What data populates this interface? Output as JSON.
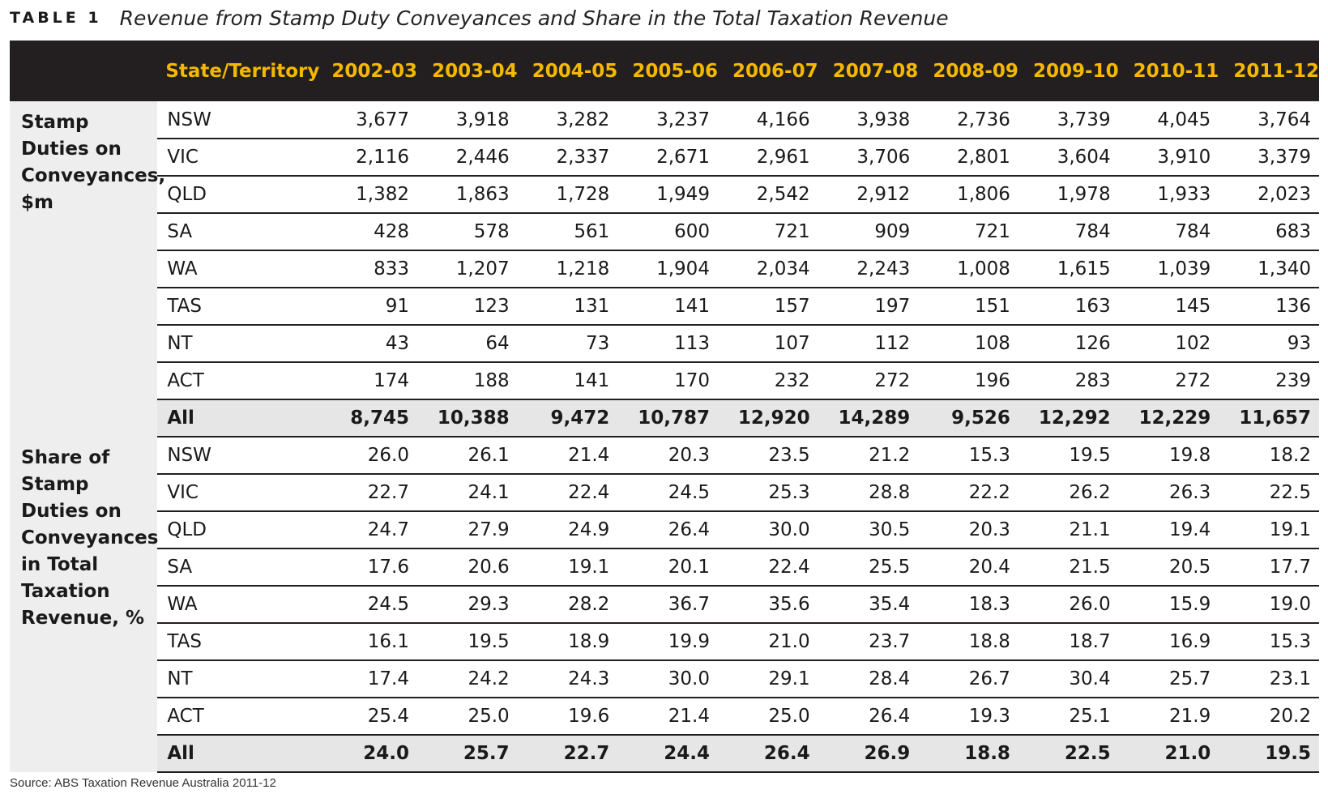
{
  "title": {
    "label": "TABLE 1",
    "text": "Revenue from Stamp Duty Conveyances and Share in the Total Taxation Revenue"
  },
  "table": {
    "state_header": "State/Territory",
    "years": [
      "2002-03",
      "2003-04",
      "2004-05",
      "2005-06",
      "2006-07",
      "2007-08",
      "2008-09",
      "2009-10",
      "2010-11",
      "2011-12"
    ],
    "sections": [
      {
        "label": "Stamp Duties on Conveyances, $m",
        "rows": [
          {
            "state": "NSW",
            "values": [
              "3,677",
              "3,918",
              "3,282",
              "3,237",
              "4,166",
              "3,938",
              "2,736",
              "3,739",
              "4,045",
              "3,764"
            ]
          },
          {
            "state": "VIC",
            "values": [
              "2,116",
              "2,446",
              "2,337",
              "2,671",
              "2,961",
              "3,706",
              "2,801",
              "3,604",
              "3,910",
              "3,379"
            ]
          },
          {
            "state": "QLD",
            "values": [
              "1,382",
              "1,863",
              "1,728",
              "1,949",
              "2,542",
              "2,912",
              "1,806",
              "1,978",
              "1,933",
              "2,023"
            ]
          },
          {
            "state": "SA",
            "values": [
              "428",
              "578",
              "561",
              "600",
              "721",
              "909",
              "721",
              "784",
              "784",
              "683"
            ]
          },
          {
            "state": "WA",
            "values": [
              "833",
              "1,207",
              "1,218",
              "1,904",
              "2,034",
              "2,243",
              "1,008",
              "1,615",
              "1,039",
              "1,340"
            ]
          },
          {
            "state": "TAS",
            "values": [
              "91",
              "123",
              "131",
              "141",
              "157",
              "197",
              "151",
              "163",
              "145",
              "136"
            ]
          },
          {
            "state": "NT",
            "values": [
              "43",
              "64",
              "73",
              "113",
              "107",
              "112",
              "108",
              "126",
              "102",
              "93"
            ]
          },
          {
            "state": "ACT",
            "values": [
              "174",
              "188",
              "141",
              "170",
              "232",
              "272",
              "196",
              "283",
              "272",
              "239"
            ]
          },
          {
            "state": "All",
            "values": [
              "8,745",
              "10,388",
              "9,472",
              "10,787",
              "12,920",
              "14,289",
              "9,526",
              "12,292",
              "12,229",
              "11,657"
            ]
          }
        ]
      },
      {
        "label": "Share of Stamp Duties on Conveyances in Total Taxation Revenue, %",
        "rows": [
          {
            "state": "NSW",
            "values": [
              "26.0",
              "26.1",
              "21.4",
              "20.3",
              "23.5",
              "21.2",
              "15.3",
              "19.5",
              "19.8",
              "18.2"
            ]
          },
          {
            "state": "VIC",
            "values": [
              "22.7",
              "24.1",
              "22.4",
              "24.5",
              "25.3",
              "28.8",
              "22.2",
              "26.2",
              "26.3",
              "22.5"
            ]
          },
          {
            "state": "QLD",
            "values": [
              "24.7",
              "27.9",
              "24.9",
              "26.4",
              "30.0",
              "30.5",
              "20.3",
              "21.1",
              "19.4",
              "19.1"
            ]
          },
          {
            "state": "SA",
            "values": [
              "17.6",
              "20.6",
              "19.1",
              "20.1",
              "22.4",
              "25.5",
              "20.4",
              "21.5",
              "20.5",
              "17.7"
            ]
          },
          {
            "state": "WA",
            "values": [
              "24.5",
              "29.3",
              "28.2",
              "36.7",
              "35.6",
              "35.4",
              "18.3",
              "26.0",
              "15.9",
              "19.0"
            ]
          },
          {
            "state": "TAS",
            "values": [
              "16.1",
              "19.5",
              "18.9",
              "19.9",
              "21.0",
              "23.7",
              "18.8",
              "18.7",
              "16.9",
              "15.3"
            ]
          },
          {
            "state": "NT",
            "values": [
              "17.4",
              "24.2",
              "24.3",
              "30.0",
              "29.1",
              "28.4",
              "26.7",
              "30.4",
              "25.7",
              "23.1"
            ]
          },
          {
            "state": "ACT",
            "values": [
              "25.4",
              "25.0",
              "19.6",
              "21.4",
              "25.0",
              "26.4",
              "19.3",
              "25.1",
              "21.9",
              "20.2"
            ]
          },
          {
            "state": "All",
            "values": [
              "24.0",
              "25.7",
              "22.7",
              "24.4",
              "26.4",
              "26.9",
              "18.8",
              "22.5",
              "21.0",
              "19.5"
            ]
          }
        ]
      }
    ]
  },
  "source": "Source: ABS Taxation Revenue Australia 2011-12",
  "colors": {
    "header_bg": "#231f20",
    "header_text": "#f5b800",
    "group_bg": "#eeeeee",
    "total_row_bg": "#e6e6e6"
  }
}
